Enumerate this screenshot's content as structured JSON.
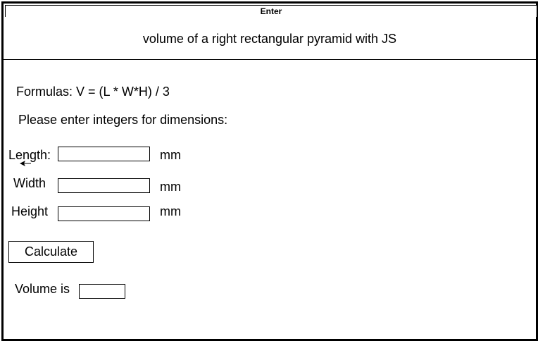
{
  "window": {
    "title": "Enter"
  },
  "header": {
    "title": "volume of a right rectangular pyramid  with JS"
  },
  "main": {
    "formula": "Formulas: V = (L * W*H) / 3",
    "instruction": "Please enter integers for dimensions:",
    "fields": {
      "length": {
        "label": "Length:",
        "unit": "mm",
        "value": ""
      },
      "width": {
        "label": "Width",
        "unit": "mm",
        "value": ""
      },
      "height": {
        "label": "Height",
        "unit": "mm",
        "value": ""
      }
    },
    "calculate_label": "Calculate",
    "result": {
      "label": "Volume is",
      "value": ""
    }
  },
  "icons": {
    "arrow": "arrow-left-icon"
  }
}
